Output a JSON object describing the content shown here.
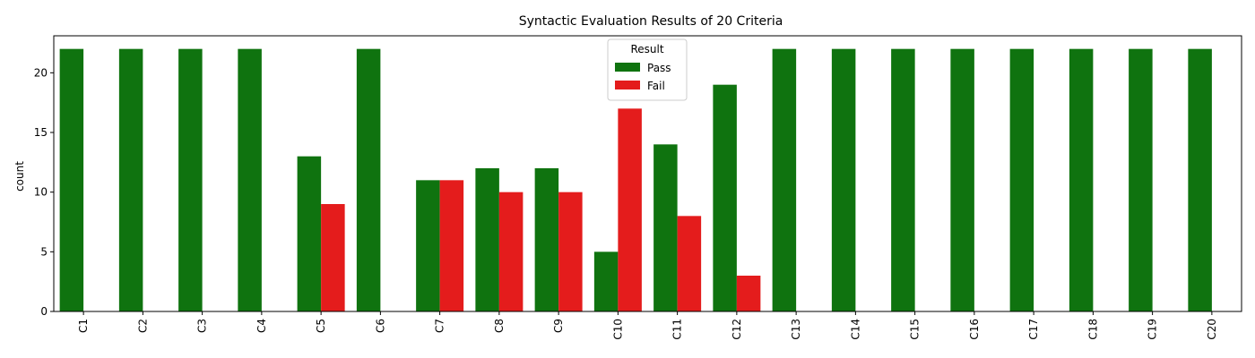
{
  "chart_data": {
    "type": "bar",
    "title": "Syntactic Evaluation Results of 20 Criteria",
    "xlabel": "",
    "ylabel": "count",
    "ylim": [
      0,
      23.1
    ],
    "yticks": [
      0,
      5,
      10,
      15,
      20
    ],
    "categories": [
      "C1",
      "C2",
      "C3",
      "C4",
      "C5",
      "C6",
      "C7",
      "C8",
      "C9",
      "C10",
      "C11",
      "C12",
      "C13",
      "C14",
      "C15",
      "C16",
      "C17",
      "C18",
      "C19",
      "C20"
    ],
    "series": [
      {
        "name": "Pass",
        "color": "#0f730f",
        "values": [
          22,
          22,
          22,
          22,
          13,
          22,
          11,
          12,
          12,
          5,
          14,
          19,
          22,
          22,
          22,
          22,
          22,
          22,
          22,
          22
        ]
      },
      {
        "name": "Fail",
        "color": "#e41c1c",
        "values": [
          0,
          0,
          0,
          0,
          9,
          0,
          11,
          10,
          10,
          17,
          8,
          3,
          0,
          0,
          0,
          0,
          0,
          0,
          0,
          0
        ]
      }
    ],
    "legend": {
      "title": "Result",
      "placement": "top-center"
    },
    "grid": false
  }
}
